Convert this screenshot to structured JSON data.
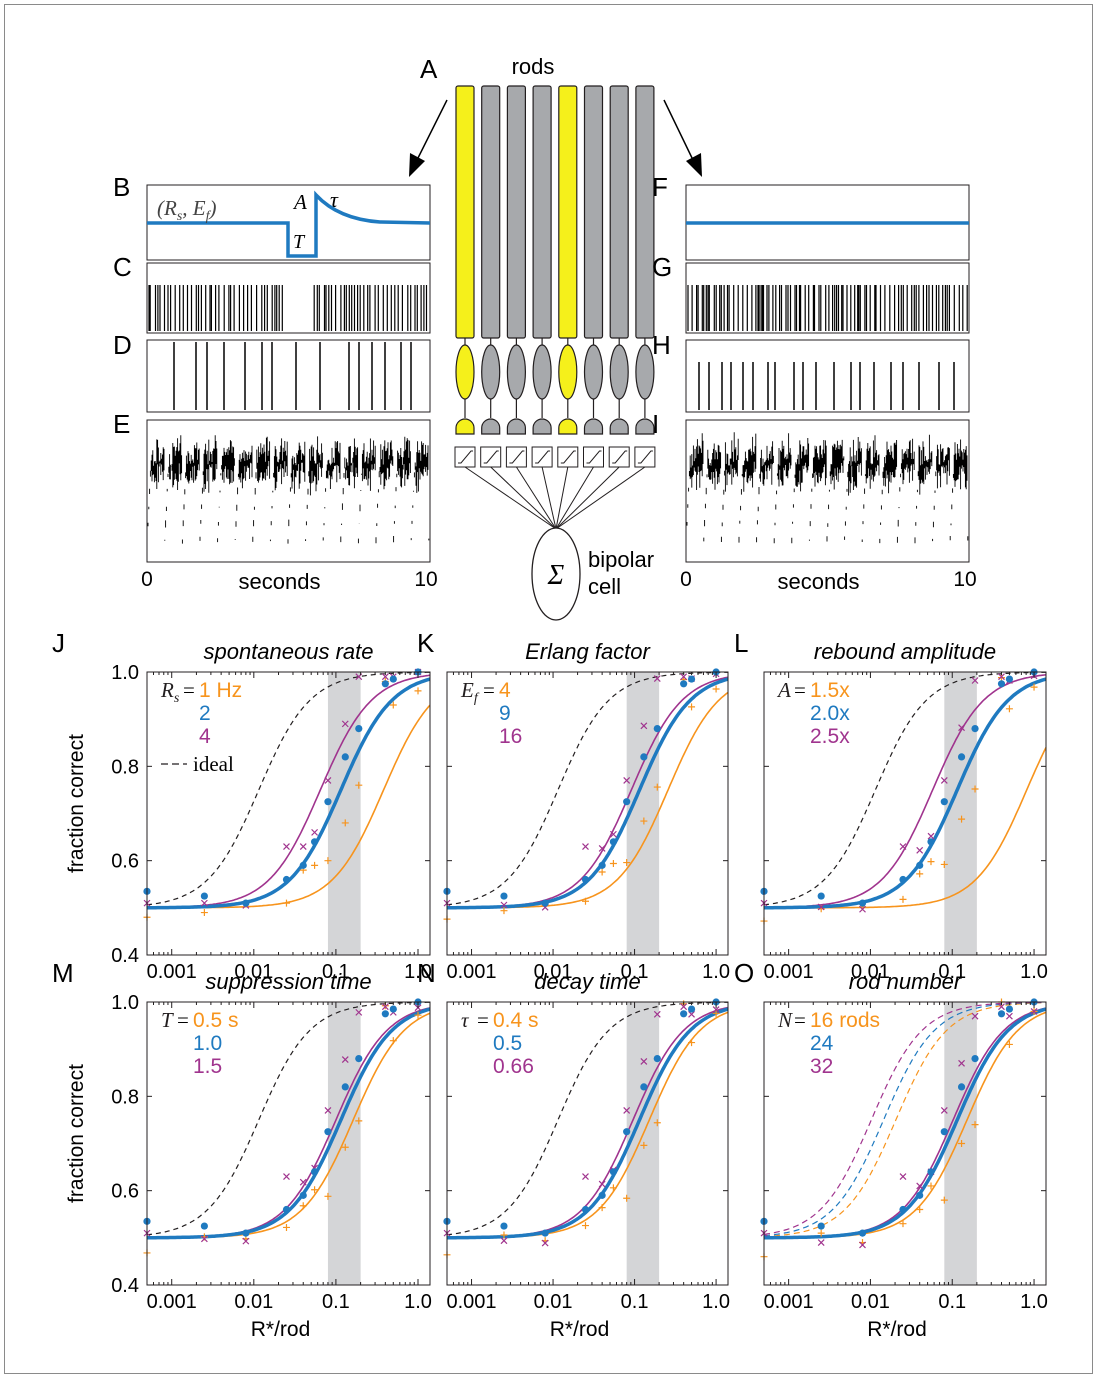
{
  "colors": {
    "orange": "#F7941D",
    "blue": "#1F7AC0",
    "purple": "#A0348E",
    "yellow": "#F5F01B",
    "gray": "#A7A9AC",
    "shade": "#D4D5D7"
  },
  "top": {
    "labels": {
      "A": "A",
      "B": "B",
      "C": "C",
      "D": "D",
      "E": "E",
      "F": "F",
      "G": "G",
      "H": "H",
      "I": "I"
    },
    "rods_label": "rods",
    "rod_colors": [
      "yellow",
      "gray",
      "gray",
      "gray",
      "yellow",
      "gray",
      "gray",
      "gray"
    ],
    "sum_symbol": "Σ",
    "bipolar_line1": "bipolar",
    "bipolar_line2": "cell",
    "param_Rs": "R",
    "param_Rs_sub": "s",
    "param_Ef": "E",
    "param_Ef_sub": "f",
    "param_open": "(",
    "param_comma": ",",
    "param_close": ")",
    "param_A": "A",
    "param_tau": "τ",
    "param_T": "T",
    "x_ticks": [
      "0",
      "10"
    ],
    "x_label": "seconds"
  },
  "panels": [
    {
      "label": "J",
      "title": "spontaneous rate",
      "legend_sym": "R",
      "legend_sub": "s",
      "legend": [
        "1 Hz",
        "2",
        "4"
      ],
      "ideal_label": "ideal",
      "ideal_shift": 1.0,
      "shifts": [
        0.52,
        0.0,
        -0.25
      ]
    },
    {
      "label": "K",
      "title": "Erlang factor",
      "legend_sym": "E",
      "legend_sub": "f",
      "legend": [
        "4",
        "9",
        "16"
      ],
      "ideal_shift": 1.0,
      "shifts": [
        0.35,
        0.0,
        -0.1
      ]
    },
    {
      "label": "L",
      "title": "rebound amplitude",
      "legend_sym": "A",
      "legend_sub": "",
      "legend": [
        "1.5x",
        "2.0x",
        "2.5x"
      ],
      "ideal_shift": 1.0,
      "shifts": [
        0.85,
        0.0,
        -0.3
      ]
    },
    {
      "label": "M",
      "title": "suppression time",
      "legend_sym": "T",
      "legend_sub": "",
      "legend": [
        "0.5 s",
        "1.0",
        "1.5"
      ],
      "ideal_shift": 1.0,
      "shifts": [
        0.15,
        0.0,
        -0.06
      ]
    },
    {
      "label": "N",
      "title": "decay time",
      "legend_sym": "τ",
      "legend_sub": "",
      "legend": [
        "0.4 s",
        "0.5",
        "0.66"
      ],
      "ideal_shift": 1.0,
      "shifts": [
        0.12,
        0.0,
        -0.08
      ]
    },
    {
      "label": "O",
      "title": "rod number",
      "legend_sym": "N",
      "legend_sub": "",
      "legend": [
        "16 rods",
        "24",
        "32"
      ],
      "ideal_shift": null,
      "shifts": [
        0.12,
        0.0,
        -0.05
      ],
      "dashed_shifts": [
        0.75,
        0.9,
        1.05
      ]
    }
  ],
  "chart_data": {
    "type": "line",
    "xlabel": "R*/rod",
    "ylabel": "fraction correct",
    "xscale": "log",
    "xlim": [
      0.0005,
      1.4
    ],
    "ylim": [
      0.4,
      1.0
    ],
    "x_ticks": [
      "0.001",
      "0.01",
      "0.1",
      "1.0"
    ],
    "y_ticks": [
      "0.4",
      "0.6",
      "0.8",
      "1.0"
    ],
    "shaded_x": [
      0.08,
      0.2
    ],
    "points_x": [
      0.0005,
      0.0025,
      0.008,
      0.025,
      0.04,
      0.055,
      0.08,
      0.13,
      0.19,
      0.4,
      0.5,
      1.0
    ],
    "blue_points": [
      0.535,
      0.525,
      0.51,
      0.56,
      0.59,
      0.64,
      0.725,
      0.82,
      0.88,
      0.975,
      0.985,
      1.0
    ],
    "orange_points": [
      0.48,
      0.49,
      0.51,
      0.51,
      0.58,
      0.59,
      0.6,
      0.68,
      0.76,
      0.98,
      0.93,
      0.96
    ],
    "purple_points": [
      0.51,
      0.51,
      0.505,
      0.63,
      0.63,
      0.66,
      0.77,
      0.89,
      0.99,
      0.99,
      0.99,
      1.0
    ],
    "model_x50": 0.115,
    "model_slope": 3.2,
    "ideal_x50": 0.0115
  }
}
